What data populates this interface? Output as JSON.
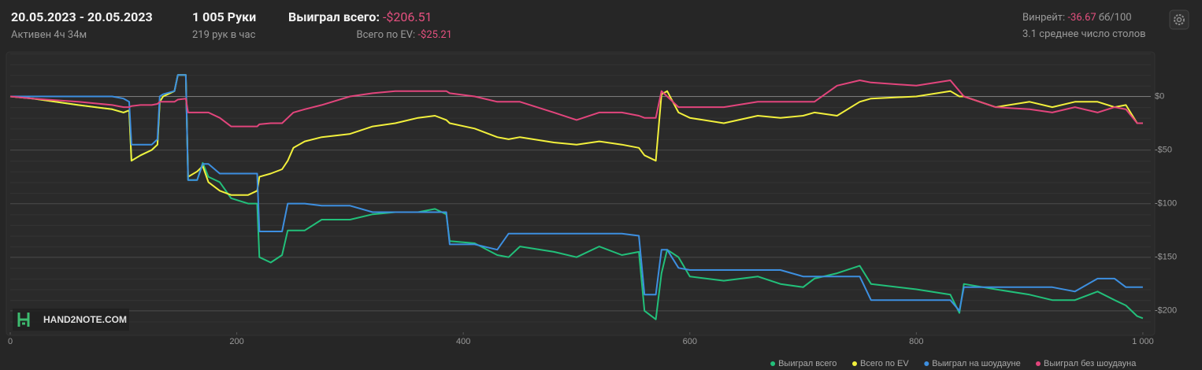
{
  "header": {
    "date_range": "20.05.2023 - 20.05.2023",
    "active": "Активен 4ч 34м",
    "hands": "1 005 Руки",
    "hands_per_hour": "219 рук в час",
    "won_total_label": "Выиграл всего:",
    "won_total_value": "-$206.51",
    "ev_label": "Всего по EV:",
    "ev_value": "-$25.21",
    "winrate_label": "Винрейт:",
    "winrate_value": "-36.67",
    "winrate_unit": "бб/100",
    "tables": "3.1 среднее число столов",
    "watermark": "HAND2NOTE.COM"
  },
  "chart_data": {
    "type": "line",
    "x": [
      0,
      20,
      60,
      90,
      100,
      105,
      107,
      115,
      125,
      130,
      132,
      135,
      145,
      148,
      155,
      157,
      165,
      170,
      175,
      185,
      195,
      210,
      218,
      220,
      230,
      240,
      245,
      250,
      260,
      275,
      300,
      320,
      340,
      360,
      375,
      385,
      388,
      410,
      430,
      440,
      450,
      480,
      500,
      520,
      540,
      555,
      560,
      570,
      575,
      580,
      590,
      600,
      630,
      660,
      680,
      700,
      710,
      730,
      750,
      760,
      800,
      830,
      838,
      842,
      870,
      900,
      920,
      940,
      960,
      975,
      985,
      995,
      1000
    ],
    "series": [
      {
        "name": "Выиграл всего",
        "color": "#22c07a",
        "values": [
          0,
          -2,
          -8,
          -12,
          -15,
          -13,
          -60,
          -55,
          -50,
          -45,
          -5,
          0,
          5,
          20,
          20,
          -78,
          -78,
          -62,
          -75,
          -80,
          -95,
          -100,
          -100,
          -150,
          -155,
          -148,
          -125,
          -125,
          -125,
          -115,
          -115,
          -110,
          -108,
          -108,
          -105,
          -110,
          -135,
          -137,
          -148,
          -150,
          -140,
          -145,
          -150,
          -140,
          -148,
          -145,
          -200,
          -208,
          -165,
          -143,
          -150,
          -168,
          -172,
          -168,
          -175,
          -178,
          -170,
          -165,
          -158,
          -175,
          -180,
          -185,
          -202,
          -175,
          -180,
          -185,
          -190,
          -190,
          -182,
          -190,
          -195,
          -205,
          -207
        ]
      },
      {
        "name": "Всего по EV",
        "color": "#f2f03c",
        "values": [
          0,
          -2,
          -8,
          -12,
          -15,
          -13,
          -60,
          -55,
          -50,
          -45,
          -5,
          0,
          5,
          20,
          20,
          -75,
          -70,
          -65,
          -80,
          -88,
          -92,
          -92,
          -88,
          -75,
          -72,
          -68,
          -60,
          -48,
          -42,
          -38,
          -35,
          -28,
          -25,
          -20,
          -18,
          -22,
          -25,
          -30,
          -38,
          -40,
          -38,
          -43,
          -45,
          -42,
          -45,
          -48,
          -55,
          -60,
          2,
          5,
          -15,
          -20,
          -25,
          -18,
          -20,
          -18,
          -15,
          -18,
          -5,
          -2,
          0,
          5,
          0,
          0,
          -10,
          -5,
          -10,
          -5,
          -5,
          -10,
          -8,
          -25,
          -25
        ]
      },
      {
        "name": "Выиграл на шоудауне",
        "color": "#3d8fe0",
        "values": [
          0,
          0,
          0,
          0,
          -2,
          -5,
          -45,
          -45,
          -45,
          -40,
          0,
          2,
          5,
          20,
          20,
          -78,
          -78,
          -63,
          -63,
          -72,
          -72,
          -72,
          -72,
          -126,
          -126,
          -126,
          -100,
          -100,
          -100,
          -102,
          -102,
          -108,
          -108,
          -108,
          -108,
          -108,
          -138,
          -138,
          -143,
          -128,
          -128,
          -128,
          -128,
          -128,
          -128,
          -130,
          -185,
          -185,
          -143,
          -143,
          -160,
          -162,
          -162,
          -162,
          -162,
          -168,
          -168,
          -168,
          -168,
          -190,
          -190,
          -190,
          -200,
          -178,
          -178,
          -178,
          -178,
          -182,
          -170,
          -170,
          -178,
          -178,
          -178
        ]
      },
      {
        "name": "Выиграл без шоудауна",
        "color": "#e2457c",
        "values": [
          0,
          -2,
          -5,
          -8,
          -10,
          -10,
          -9,
          -8,
          -8,
          -7,
          -5,
          -5,
          -5,
          -3,
          -2,
          -15,
          -15,
          -15,
          -15,
          -20,
          -28,
          -28,
          -28,
          -26,
          -25,
          -25,
          -20,
          -15,
          -12,
          -8,
          0,
          3,
          5,
          5,
          5,
          5,
          3,
          0,
          -5,
          -5,
          -5,
          -15,
          -22,
          -15,
          -15,
          -18,
          -20,
          -20,
          5,
          0,
          -10,
          -10,
          -10,
          -5,
          -5,
          -5,
          -5,
          10,
          15,
          13,
          10,
          15,
          5,
          0,
          -10,
          -12,
          -15,
          -10,
          -15,
          -10,
          -12,
          -25,
          -25
        ]
      }
    ],
    "xlim": [
      0,
      1007
    ],
    "ylim": [
      -220,
      40
    ],
    "xticks": [
      0,
      200,
      400,
      600,
      800,
      {
        "value": 1000,
        "label": "1 000"
      }
    ],
    "yticks": [
      {
        "value": 0,
        "label": "$0"
      },
      {
        "value": -50,
        "label": "-$50"
      },
      {
        "value": -100,
        "label": "-$100"
      },
      {
        "value": -150,
        "label": "-$150"
      },
      {
        "value": -200,
        "label": "-$200"
      }
    ],
    "grid": true
  }
}
